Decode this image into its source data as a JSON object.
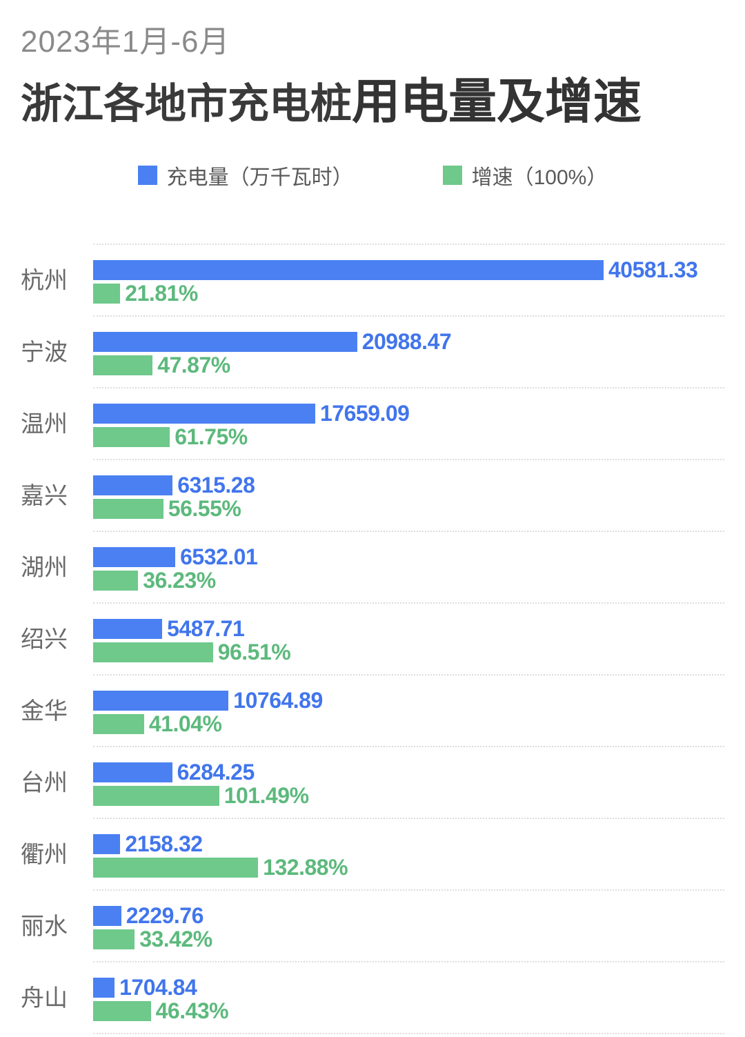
{
  "header": {
    "period": "2023年1月-6月",
    "title_regular": "浙江各地市充电桩",
    "title_emphasis": "用电量及增速"
  },
  "legend": {
    "charge_label": "充电量（万千瓦时）",
    "growth_label": "增速（100%）"
  },
  "colors": {
    "charge_bar": "#4a80f2",
    "charge_text": "#4175ec",
    "growth_bar": "#6ec98b",
    "growth_text": "#5cb97c",
    "title_gray": "#8a8a8a",
    "title_dark": "#383838",
    "city_label": "#6a6a6a",
    "separator": "#dcdcdc"
  },
  "chart_data": {
    "type": "bar",
    "orientation": "horizontal",
    "subtitle": "2023年1月-6月",
    "title": "浙江各地市充电桩用电量及增速",
    "legend_position": "top",
    "grid": "dotted-row-separators",
    "categories": [
      "杭州",
      "宁波",
      "温州",
      "嘉兴",
      "湖州",
      "绍兴",
      "金华",
      "台州",
      "衢州",
      "丽水",
      "舟山"
    ],
    "series": [
      {
        "name": "充电量（万千瓦时）",
        "color": "#4a80f2",
        "unit": "万千瓦时",
        "values": [
          40581.33,
          20988.47,
          17659.09,
          6315.28,
          6532.01,
          5487.71,
          10764.89,
          6284.25,
          2158.32,
          2229.76,
          1704.84
        ]
      },
      {
        "name": "增速（100%）",
        "color": "#6ec98b",
        "unit": "%",
        "values": [
          21.81,
          47.87,
          61.75,
          56.55,
          36.23,
          96.51,
          41.04,
          101.49,
          132.88,
          33.42,
          46.43
        ]
      }
    ],
    "value_labels": "outside-end",
    "x_axis_visible": false
  }
}
